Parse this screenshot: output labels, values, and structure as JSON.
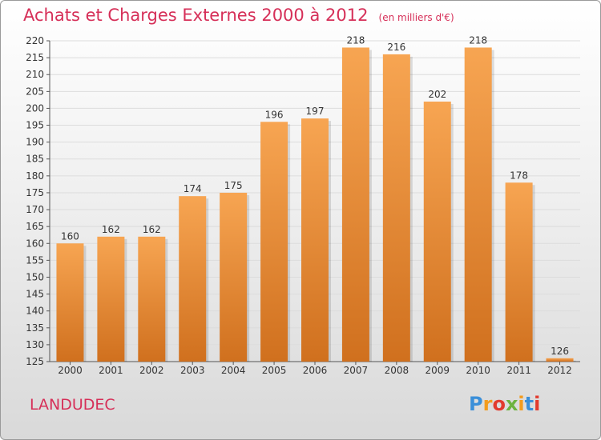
{
  "header": {
    "title": "Achats et Charges Externes 2000 à 2012",
    "subtitle": "(en milliers d'€)"
  },
  "commune": "LANDUDEC",
  "logo": {
    "text": "Proxiti"
  },
  "colors": {
    "accent": "#d62f58",
    "bar_top": "#f7a552",
    "bar_bottom": "#d0701e"
  },
  "chart_data": {
    "type": "bar",
    "title": "Achats et Charges Externes 2000 à 2012",
    "subtitle": "(en milliers d'€)",
    "categories": [
      "2000",
      "2001",
      "2002",
      "2003",
      "2004",
      "2005",
      "2006",
      "2007",
      "2008",
      "2009",
      "2010",
      "2011",
      "2012"
    ],
    "values": [
      160,
      162,
      162,
      174,
      175,
      196,
      197,
      218,
      216,
      202,
      218,
      178,
      126
    ],
    "ylim": [
      125,
      220
    ],
    "yticks": [
      125,
      130,
      135,
      140,
      145,
      150,
      155,
      160,
      165,
      170,
      175,
      180,
      185,
      190,
      195,
      200,
      205,
      210,
      215,
      220
    ],
    "grid": true,
    "data_labels": true
  }
}
